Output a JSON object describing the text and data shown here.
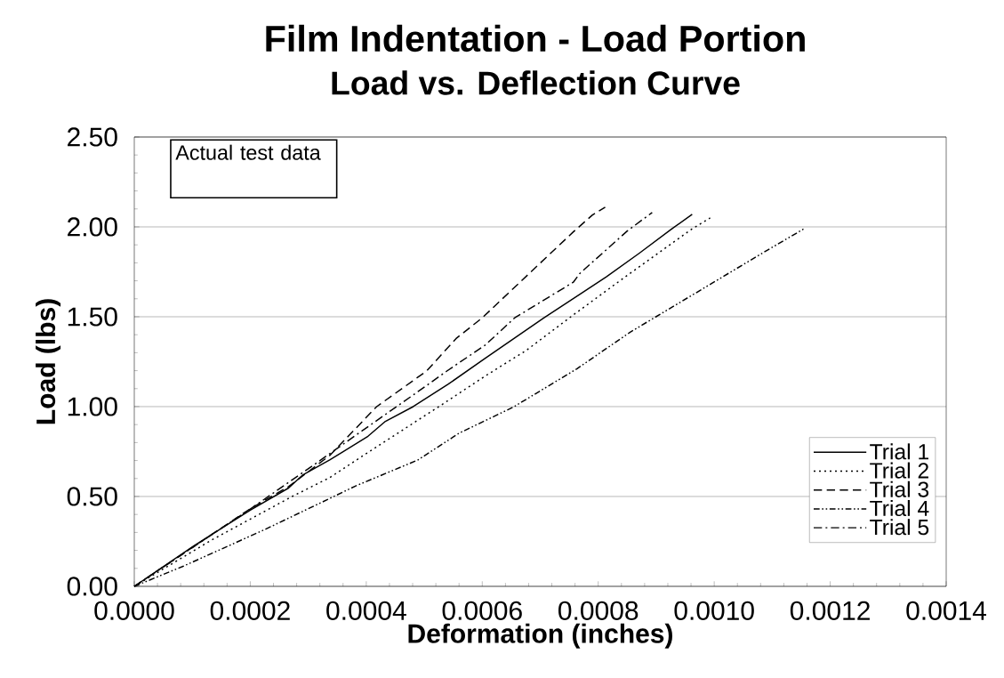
{
  "chart_data": {
    "type": "line",
    "title": "Film Indentation - Load Portion",
    "subtitle": "Load vs. Deflection Curve",
    "xlabel": "Deformation (inches)",
    "ylabel": "Load (lbs)",
    "annotations": [
      "Actual test data"
    ],
    "xlim": [
      0,
      0.0014
    ],
    "ylim": [
      0,
      2.5
    ],
    "xticks": [
      {
        "value": 0,
        "label": "0.0000"
      },
      {
        "value": 0.0002,
        "label": "0.0002"
      },
      {
        "value": 0.0004,
        "label": "0.0004"
      },
      {
        "value": 0.0006,
        "label": "0.0006"
      },
      {
        "value": 0.0008,
        "label": "0.0008"
      },
      {
        "value": 0.001,
        "label": "0.0010"
      },
      {
        "value": 0.0012,
        "label": "0.0012"
      },
      {
        "value": 0.0014,
        "label": "0.0014"
      }
    ],
    "yticks": [
      {
        "value": 0,
        "label": "0.00"
      },
      {
        "value": 0.5,
        "label": "0.50"
      },
      {
        "value": 1,
        "label": "1.00"
      },
      {
        "value": 1.5,
        "label": "1.50"
      },
      {
        "value": 2,
        "label": "2.00"
      },
      {
        "value": 2.5,
        "label": "2.50"
      }
    ],
    "grid": "y",
    "legend": "bottom right",
    "marker": "none",
    "series": [
      {
        "name": "Trial 1",
        "color": "#000000",
        "line_style": "solid",
        "x": [
          0,
          0.000103,
          0.0002,
          0.000266,
          0.000291,
          0.000337,
          0.000403,
          0.000433,
          0.000481,
          0.000541,
          0.000603,
          0.000706,
          0.000768,
          0.000814,
          0.000871,
          0.000926,
          0.000962
        ],
        "values": [
          0,
          0.226,
          0.424,
          0.547,
          0.621,
          0.703,
          0.835,
          0.918,
          1.0,
          1.124,
          1.264,
          1.493,
          1.624,
          1.722,
          1.854,
          1.987,
          2.07
        ]
      },
      {
        "name": "Trial 2",
        "color": "#000000",
        "line_style": "dotted",
        "x": [
          0,
          0.000134,
          0.0002,
          0.000271,
          0.000337,
          0.000403,
          0.000529,
          0.000605,
          0.000676,
          0.000757,
          0.00085,
          0.000961,
          0.000993
        ],
        "values": [
          0,
          0.259,
          0.374,
          0.498,
          0.605,
          0.745,
          1.008,
          1.17,
          1.313,
          1.51,
          1.73,
          1.987,
          2.05
        ]
      },
      {
        "name": "Trial 3",
        "color": "#000000",
        "line_style": "dashed",
        "x": [
          0,
          0.0002,
          0.000266,
          0.000337,
          0.000418,
          0.000504,
          0.000555,
          0.0006,
          0.000757,
          0.00079,
          0.000812
        ],
        "values": [
          0,
          0.432,
          0.555,
          0.728,
          1.0,
          1.198,
          1.379,
          1.494,
          1.972,
          2.066,
          2.11
        ]
      },
      {
        "name": "Trial 4",
        "color": "#000000",
        "line_style": "dashdotdot",
        "x": [
          0,
          8.3e-05,
          0.000225,
          0.000337,
          0.000382,
          0.000489,
          0.00056,
          0.000654,
          0.000763,
          0.000855,
          0.000996,
          0.001083,
          0.001155
        ],
        "values": [
          0,
          0.11,
          0.316,
          0.489,
          0.559,
          0.703,
          0.852,
          0.998,
          1.21,
          1.414,
          1.686,
          1.854,
          1.99
        ]
      },
      {
        "name": "Trial 5",
        "color": "#000000",
        "line_style": "dashdot",
        "x": [
          0,
          0.0002,
          0.000311,
          0.000387,
          0.000489,
          0.000539,
          0.000605,
          0.000656,
          0.000757,
          0.000768,
          0.00085,
          0.000893
        ],
        "values": [
          0,
          0.43,
          0.679,
          0.852,
          1.083,
          1.198,
          1.342,
          1.494,
          1.692,
          1.74,
          1.977,
          2.08
        ]
      }
    ]
  }
}
